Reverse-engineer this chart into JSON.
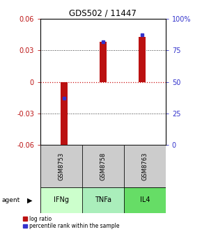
{
  "title": "GDS502 / 11447",
  "samples": [
    "GSM8753",
    "GSM8758",
    "GSM8763"
  ],
  "agents": [
    "IFNg",
    "TNFa",
    "IL4"
  ],
  "log_ratios": [
    -0.065,
    0.038,
    0.043
  ],
  "percentile_ranks": [
    37,
    82,
    87
  ],
  "ylim_left": [
    -0.06,
    0.06
  ],
  "ylim_right": [
    0,
    100
  ],
  "yticks_left": [
    -0.06,
    -0.03,
    0,
    0.03,
    0.06
  ],
  "yticks_right": [
    0,
    25,
    50,
    75,
    100
  ],
  "ytick_labels_right": [
    "0",
    "25",
    "50",
    "75",
    "100%"
  ],
  "bar_color": "#bb1111",
  "percentile_color": "#3333cc",
  "agent_colors": [
    "#ccffcc",
    "#aaeebb",
    "#66dd66"
  ],
  "sample_bg": "#cccccc",
  "zero_line_color": "#cc1111",
  "bar_width": 0.18
}
